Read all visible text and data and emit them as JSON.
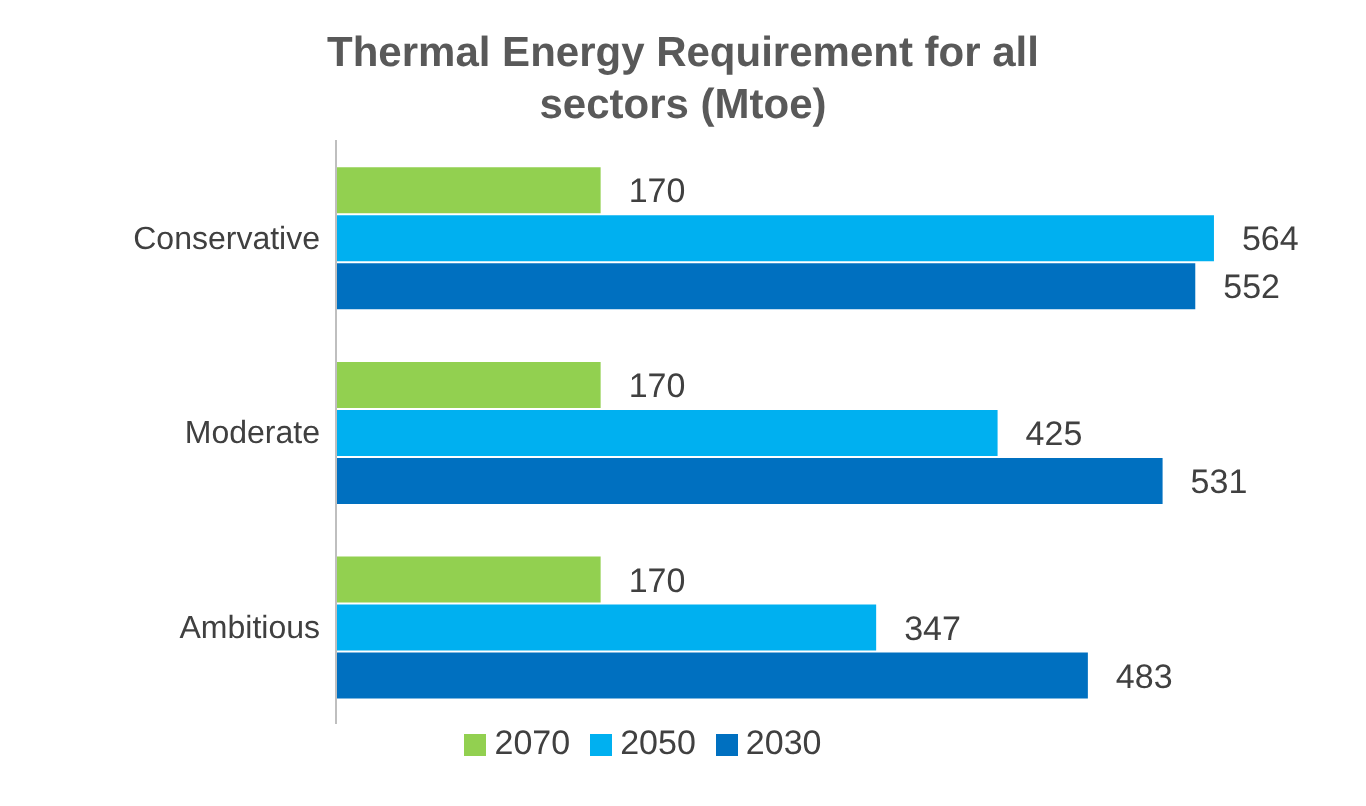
{
  "chart_data": {
    "type": "bar",
    "orientation": "horizontal",
    "title": "Thermal Energy Requirement for all sectors (Mtoe)",
    "categories": [
      "Conservative",
      "Moderate",
      "Ambitious"
    ],
    "series": [
      {
        "name": "2070",
        "color": "#92d050",
        "values": [
          170,
          170,
          170
        ]
      },
      {
        "name": "2050",
        "color": "#00b0f0",
        "values": [
          564,
          425,
          347
        ]
      },
      {
        "name": "2030",
        "color": "#0070c0",
        "values": [
          552,
          531,
          483
        ]
      }
    ],
    "data_labels": true,
    "legend": "bottom"
  }
}
